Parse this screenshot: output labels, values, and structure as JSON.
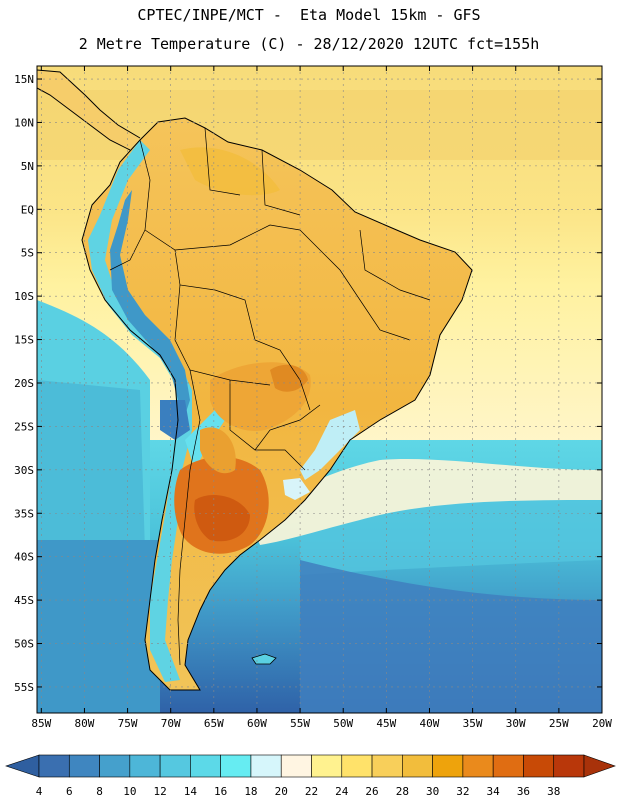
{
  "header": {
    "line1": "CPTEC/INPE/MCT -  Eta Model 15km - GFS",
    "line2": "2 Metre Temperature (C) - 28/12/2020 12UTC fct=155h"
  },
  "map": {
    "lat_labels": [
      "15N",
      "10N",
      "5N",
      "EQ",
      "5S",
      "10S",
      "15S",
      "20S",
      "25S",
      "30S",
      "35S",
      "40S",
      "45S",
      "50S",
      "55S"
    ],
    "lon_labels": [
      "85W",
      "80W",
      "75W",
      "70W",
      "65W",
      "60W",
      "55W",
      "50W",
      "45W",
      "40W",
      "35W",
      "30W",
      "25W",
      "20W"
    ],
    "lat_values": [
      15,
      10,
      5,
      0,
      -5,
      -10,
      -15,
      -20,
      -25,
      -30,
      -35,
      -40,
      -45,
      -50,
      -55
    ],
    "lon_values": [
      -85,
      -80,
      -75,
      -70,
      -65,
      -60,
      -55,
      -50,
      -45,
      -40,
      -35,
      -30,
      -25,
      -20
    ],
    "extent": {
      "lon_min": -85.5,
      "lon_max": -20,
      "lat_min": -58,
      "lat_max": 16.5
    }
  },
  "colorbar": {
    "labels": [
      "4",
      "6",
      "8",
      "10",
      "12",
      "14",
      "16",
      "18",
      "20",
      "22",
      "24",
      "26",
      "28",
      "30",
      "32",
      "34",
      "36",
      "38"
    ],
    "colors": [
      "#3a6fb0",
      "#3f86c0",
      "#45a0cc",
      "#4db6d8",
      "#55c8e0",
      "#5cd9e8",
      "#66ecf2",
      "#d6f6fb",
      "#fff5e2",
      "#fff28f",
      "#ffe26a",
      "#f8cf5a",
      "#f2bd3c",
      "#eea30c",
      "#ea8a1c",
      "#e06d12",
      "#c84a06",
      "#b9370a"
    ],
    "low_arrow_color": "#2f5fa0",
    "high_arrow_color": "#a8320a"
  }
}
